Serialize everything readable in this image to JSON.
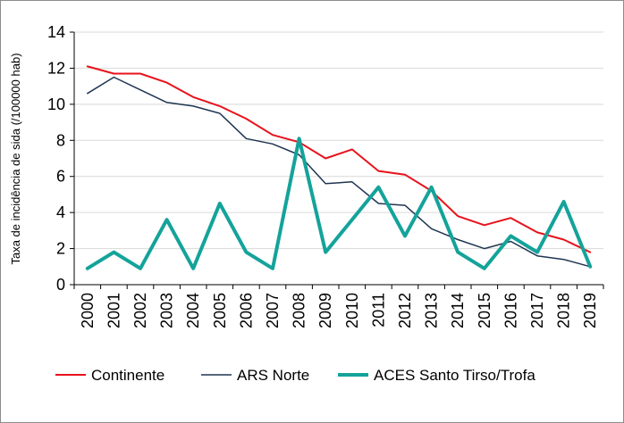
{
  "chart_data": {
    "type": "line",
    "title": "",
    "xlabel": "",
    "ylabel": "Taxa de incidência de sida (/100000 hab)",
    "x": [
      "2000",
      "2001",
      "2002",
      "2003",
      "2004",
      "2005",
      "2006",
      "2007",
      "2008",
      "2009",
      "2010",
      "2011",
      "2012",
      "2013",
      "2014",
      "2015",
      "2016",
      "2017",
      "2018",
      "2019"
    ],
    "ylim": [
      0,
      14
    ],
    "yticks": [
      0,
      2,
      4,
      6,
      8,
      10,
      12,
      14
    ],
    "grid": "horizontal",
    "legend_position": "bottom",
    "series": [
      {
        "name": "Continente",
        "color": "#e8121b",
        "values": [
          12.1,
          11.7,
          11.7,
          11.2,
          10.4,
          9.9,
          9.2,
          8.3,
          7.9,
          7.0,
          7.5,
          6.3,
          6.1,
          5.2,
          3.8,
          3.3,
          3.7,
          2.9,
          2.5,
          1.8
        ]
      },
      {
        "name": "ARS Norte",
        "color": "#1f3552",
        "values": [
          10.6,
          11.5,
          10.8,
          10.1,
          9.9,
          9.5,
          8.1,
          7.8,
          7.2,
          5.6,
          5.7,
          4.5,
          4.4,
          3.1,
          2.5,
          2.0,
          2.4,
          1.6,
          1.4,
          1.0
        ]
      },
      {
        "name": "ACES Santo Tirso/Trofa",
        "color": "#14a39a",
        "values": [
          0.9,
          1.8,
          0.9,
          3.6,
          0.9,
          4.5,
          1.8,
          0.9,
          8.1,
          1.8,
          3.6,
          5.4,
          2.7,
          5.4,
          1.8,
          0.9,
          2.7,
          1.8,
          4.6,
          1.0
        ]
      }
    ]
  }
}
